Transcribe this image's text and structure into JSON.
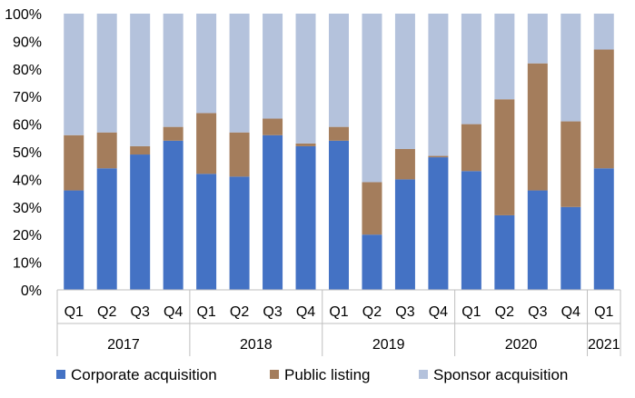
{
  "chart_data": {
    "type": "bar",
    "stacked": true,
    "normalized": true,
    "categories": [
      "Q1",
      "Q2",
      "Q3",
      "Q4",
      "Q1",
      "Q2",
      "Q3",
      "Q4",
      "Q1",
      "Q2",
      "Q3",
      "Q4",
      "Q1",
      "Q2",
      "Q3",
      "Q4",
      "Q1"
    ],
    "groups": [
      {
        "label": "2017",
        "count": 4
      },
      {
        "label": "2018",
        "count": 4
      },
      {
        "label": "2019",
        "count": 4
      },
      {
        "label": "2020",
        "count": 4
      },
      {
        "label": "2021",
        "count": 1
      }
    ],
    "series": [
      {
        "name": "Corporate acquisition",
        "color": "#4472C4",
        "values": [
          36,
          44,
          49,
          54,
          42,
          41,
          56,
          52,
          54,
          20,
          40,
          48,
          43,
          27,
          36,
          30,
          44
        ]
      },
      {
        "name": "Public listing",
        "color": "#A47D5C",
        "values": [
          20,
          13,
          3,
          5,
          22,
          16,
          6,
          1,
          5,
          19,
          11,
          0.5,
          17,
          42,
          46,
          31,
          43
        ]
      },
      {
        "name": "Sponsor acquisition",
        "color": "#B4C2DC",
        "values": [
          44,
          43,
          48,
          41,
          36,
          43,
          38,
          47,
          41,
          61,
          49,
          51.5,
          40,
          31,
          18,
          39,
          13
        ]
      }
    ],
    "ylim": [
      0,
      100
    ],
    "yticks": [
      "0%",
      "10%",
      "20%",
      "30%",
      "40%",
      "50%",
      "60%",
      "70%",
      "80%",
      "90%",
      "100%"
    ],
    "grid": false,
    "legend_position": "bottom"
  }
}
